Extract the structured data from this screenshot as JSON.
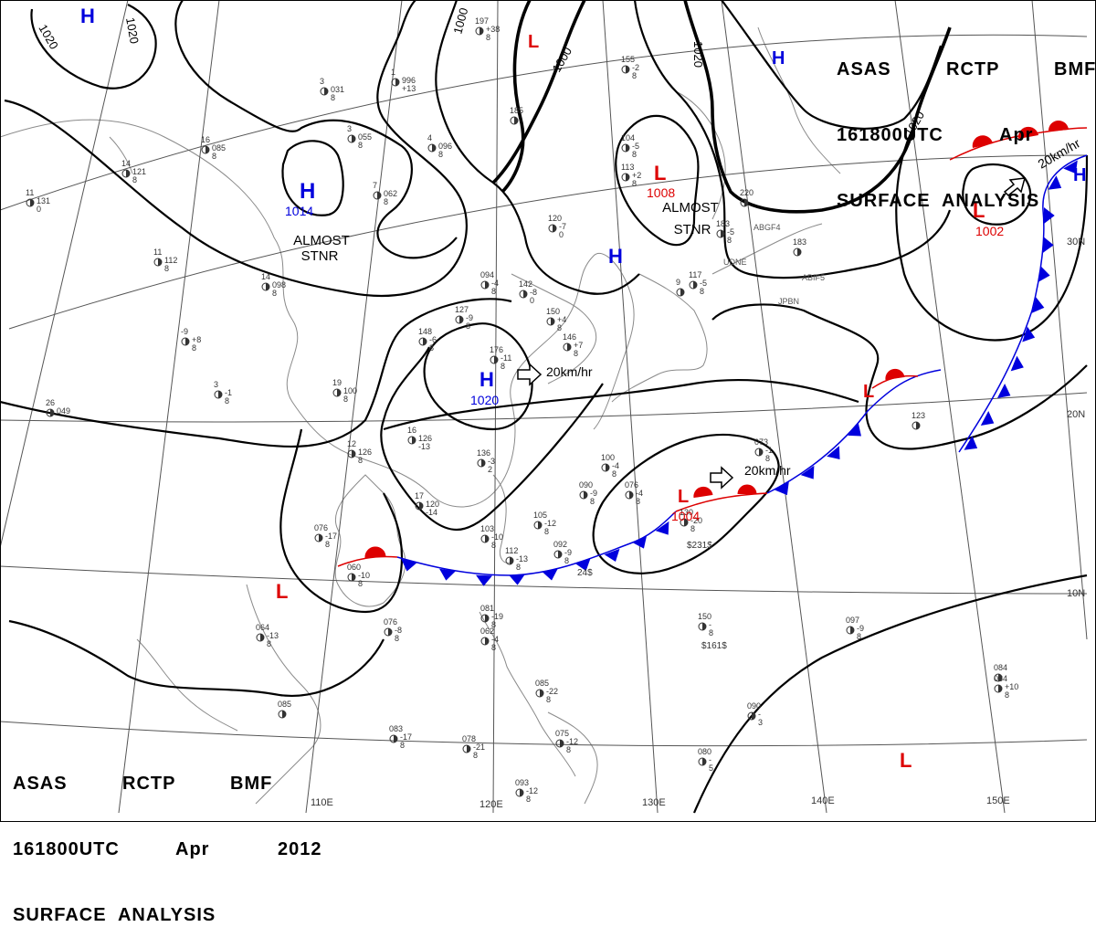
{
  "header": {
    "line1": [
      "ASAS",
      "RCTP",
      "BMF"
    ],
    "line2": [
      "161800UTC",
      "Apr",
      "2012"
    ],
    "line3": "SURFACE  ANALYSIS"
  },
  "colors": {
    "high": "#0000dd",
    "low": "#dd0000",
    "cold_front": "#0000dd",
    "warm_front": "#dd0000"
  },
  "pressure_centers": [
    {
      "id": "h1",
      "type": "H",
      "value": "",
      "note": ""
    },
    {
      "id": "h2",
      "type": "H",
      "value": "1014",
      "note": "ALMOST\nSTNR"
    },
    {
      "id": "h3",
      "type": "H",
      "value": "1020",
      "note": "",
      "motion": "20km/hr"
    },
    {
      "id": "h4",
      "type": "H",
      "value": "",
      "note": ""
    },
    {
      "id": "h5",
      "type": "H",
      "value": "",
      "note": ""
    },
    {
      "id": "h6",
      "type": "H",
      "value": "",
      "note": ""
    },
    {
      "id": "l1",
      "type": "L",
      "value": "",
      "note": ""
    },
    {
      "id": "l2",
      "type": "L",
      "value": "1008",
      "note": "ALMOST\nSTNR"
    },
    {
      "id": "l3",
      "type": "L",
      "value": "1002",
      "note": "",
      "motion": "20km/hr"
    },
    {
      "id": "l4",
      "type": "L",
      "value": "",
      "note": ""
    },
    {
      "id": "l5",
      "type": "L",
      "value": "1004",
      "note": "",
      "motion": "20km/hr"
    },
    {
      "id": "l6",
      "type": "L",
      "value": "",
      "note": ""
    },
    {
      "id": "l7",
      "type": "L",
      "value": "",
      "note": ""
    }
  ],
  "isobar_labels": [
    "1020",
    "1020",
    "1000",
    "1000",
    "1020",
    "1020"
  ],
  "grid_labels": {
    "lon": [
      "110E",
      "120E",
      "130E",
      "140E",
      "150E"
    ],
    "lat": [
      "30N",
      "20N",
      "10N"
    ]
  },
  "station_labels": [
    "UDNE",
    "JPBN",
    "ABGF4",
    "ABIF5"
  ],
  "observations": [
    {
      "id": "s1",
      "lines": [
        "16",
        "085",
        "8"
      ]
    },
    {
      "id": "s2",
      "lines": [
        "3",
        "031",
        "8"
      ]
    },
    {
      "id": "s3",
      "lines": [
        "1",
        "996",
        "+13"
      ]
    },
    {
      "id": "s4",
      "lines": [
        "4",
        "096",
        "8"
      ]
    },
    {
      "id": "s5",
      "lines": [
        "3",
        "055",
        "8"
      ]
    },
    {
      "id": "s6",
      "lines": [
        "7",
        "062",
        "8"
      ]
    },
    {
      "id": "s7",
      "lines": [
        "14",
        "121",
        "8"
      ]
    },
    {
      "id": "s8",
      "lines": [
        "11",
        "131",
        "0"
      ]
    },
    {
      "id": "s9",
      "lines": [
        "11",
        "112",
        "8"
      ]
    },
    {
      "id": "s10",
      "lines": [
        "14",
        "098",
        "8"
      ]
    },
    {
      "id": "s11",
      "lines": [
        "-9",
        "+8",
        "8"
      ]
    },
    {
      "id": "s12",
      "lines": [
        "3",
        "-1",
        "8"
      ]
    },
    {
      "id": "s13",
      "lines": [
        "26",
        "049",
        ""
      ]
    },
    {
      "id": "s14",
      "lines": [
        "19",
        "100",
        "8"
      ]
    },
    {
      "id": "s15",
      "lines": [
        "12",
        "126",
        "8"
      ]
    },
    {
      "id": "s16",
      "lines": [
        "16",
        "126",
        "-13"
      ]
    },
    {
      "id": "s17",
      "lines": [
        "17",
        "120",
        "-14"
      ]
    },
    {
      "id": "s18",
      "lines": [
        "104",
        "-5",
        "8"
      ]
    },
    {
      "id": "s19",
      "lines": [
        "113",
        "+2",
        "8"
      ]
    },
    {
      "id": "s20",
      "lines": [
        "120",
        "-7",
        "0"
      ]
    },
    {
      "id": "s21",
      "lines": [
        "142",
        "-8",
        "0"
      ]
    },
    {
      "id": "s22",
      "lines": [
        "150",
        "+4",
        "8"
      ]
    },
    {
      "id": "s23",
      "lines": [
        "146",
        "+7",
        "8"
      ]
    },
    {
      "id": "s24",
      "lines": [
        "148",
        "-6",
        "8"
      ]
    },
    {
      "id": "s25",
      "lines": [
        "176",
        "-11",
        "8"
      ]
    },
    {
      "id": "s26",
      "lines": [
        "094",
        "-4",
        "8"
      ]
    },
    {
      "id": "s27",
      "lines": [
        "127",
        "-9",
        "8"
      ]
    },
    {
      "id": "s28",
      "lines": [
        "136",
        "-3",
        "2"
      ]
    },
    {
      "id": "s29",
      "lines": [
        "100",
        "-4",
        "8"
      ]
    },
    {
      "id": "s30",
      "lines": [
        "090",
        "-9",
        "8"
      ]
    },
    {
      "id": "s31",
      "lines": [
        "076",
        "-4",
        "8"
      ]
    },
    {
      "id": "s32",
      "lines": [
        "105",
        "-12",
        "8"
      ]
    },
    {
      "id": "s33",
      "lines": [
        "103",
        "-10",
        "8"
      ]
    },
    {
      "id": "s34",
      "lines": [
        "112",
        "-13",
        "8"
      ]
    },
    {
      "id": "s35",
      "lines": [
        "092",
        "-9",
        "8"
      ]
    },
    {
      "id": "s36",
      "lines": [
        "076",
        "-17",
        "8"
      ]
    },
    {
      "id": "s37",
      "lines": [
        "060",
        "-10",
        "8"
      ]
    },
    {
      "id": "s38",
      "lines": [
        "064",
        "-13",
        "8"
      ]
    },
    {
      "id": "s39",
      "lines": [
        "076",
        "-8",
        "8"
      ]
    },
    {
      "id": "s40",
      "lines": [
        "081",
        "-19",
        "8"
      ]
    },
    {
      "id": "s41",
      "lines": [
        "062",
        "-4",
        "8"
      ]
    },
    {
      "id": "s42",
      "lines": [
        "085",
        "-22",
        "8"
      ]
    },
    {
      "id": "s43",
      "lines": [
        "083",
        "-17",
        "8"
      ]
    },
    {
      "id": "s44",
      "lines": [
        "078",
        "-21",
        "8"
      ]
    },
    {
      "id": "s45",
      "lines": [
        "075",
        "-12",
        "8"
      ]
    },
    {
      "id": "s46",
      "lines": [
        "093",
        "-12",
        "8"
      ]
    },
    {
      "id": "s47",
      "lines": [
        "085",
        "",
        ""
      ]
    },
    {
      "id": "s48",
      "lines": [
        "084",
        "",
        ""
      ]
    },
    {
      "id": "s49",
      "lines": [
        "073",
        "-1",
        "8"
      ]
    },
    {
      "id": "s50",
      "lines": [
        "130",
        "-20",
        "8"
      ]
    },
    {
      "id": "s51",
      "lines": [
        "150",
        "-",
        "8"
      ]
    },
    {
      "id": "s52",
      "lines": [
        "097",
        "-9",
        "8"
      ]
    },
    {
      "id": "s53",
      "lines": [
        "084",
        "+10",
        "8"
      ]
    },
    {
      "id": "s54",
      "lines": [
        "090",
        "-",
        "3"
      ]
    },
    {
      "id": "s55",
      "lines": [
        "080",
        "-",
        "5"
      ]
    },
    {
      "id": "s56",
      "lines": [
        "123",
        "",
        ""
      ]
    },
    {
      "id": "s57",
      "lines": [
        "117",
        "-5",
        "8"
      ]
    },
    {
      "id": "s58",
      "lines": [
        "220",
        "",
        ""
      ]
    },
    {
      "id": "s59",
      "lines": [
        "183",
        "-5",
        "8"
      ]
    },
    {
      "id": "s60",
      "lines": [
        "183",
        "",
        ""
      ]
    },
    {
      "id": "s61",
      "lines": [
        "155",
        "-2",
        "8"
      ]
    },
    {
      "id": "s62",
      "lines": [
        "185",
        "",
        ""
      ]
    },
    {
      "id": "s63",
      "lines": [
        "197",
        "+38",
        "8"
      ]
    },
    {
      "id": "s64",
      "lines": [
        "9",
        "",
        ""
      ]
    }
  ],
  "ship_labels": [
    "24$",
    "$231$",
    "$161$"
  ]
}
